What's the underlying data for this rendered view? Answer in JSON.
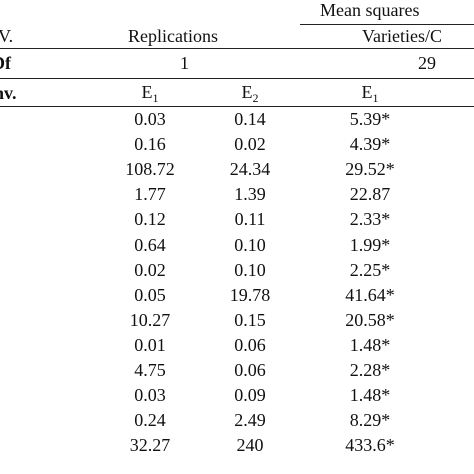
{
  "header": {
    "mean_squares": "Mean squares",
    "sv_fragment": "V.",
    "replications": "Replications",
    "varieties_fragment": "Varieties/C",
    "df_fragment": "Df",
    "replications_df": "1",
    "varieties_df": "29",
    "env_fragment": "nv.",
    "e1_label": "E",
    "e1_sub": "1",
    "e2_label": "E",
    "e2_sub": "2",
    "e1b_label": "E",
    "e1b_sub": "1"
  },
  "rows": [
    {
      "rep_e1": "0.03",
      "rep_e2": "0.14",
      "var_e1": "5.39*"
    },
    {
      "rep_e1": "0.16",
      "rep_e2": "0.02",
      "var_e1": "4.39*"
    },
    {
      "rep_e1": "108.72",
      "rep_e2": "24.34",
      "var_e1": "29.52*"
    },
    {
      "rep_e1": "1.77",
      "rep_e2": "1.39",
      "var_e1": "22.87"
    },
    {
      "rep_e1": "0.12",
      "rep_e2": "0.11",
      "var_e1": "2.33*"
    },
    {
      "rep_e1": "0.64",
      "rep_e2": "0.10",
      "var_e1": "1.99*"
    },
    {
      "rep_e1": "0.02",
      "rep_e2": "0.10",
      "var_e1": "2.25*"
    },
    {
      "rep_e1": "0.05",
      "rep_e2": "19.78",
      "var_e1": "41.64*"
    },
    {
      "rep_e1": "10.27",
      "rep_e2": "0.15",
      "var_e1": "20.58*"
    },
    {
      "rep_e1": "0.01",
      "rep_e2": "0.06",
      "var_e1": "1.48*"
    },
    {
      "rep_e1": "4.75",
      "rep_e2": "0.06",
      "var_e1": "2.28*"
    },
    {
      "rep_e1": "0.03",
      "rep_e2": "0.09",
      "var_e1": "1.48*"
    },
    {
      "rep_e1": "0.24",
      "rep_e2": "2.49",
      "var_e1": "8.29*"
    },
    {
      "rep_e1": "32.27",
      "rep_e2": "240",
      "var_e1": "433.6*"
    }
  ]
}
